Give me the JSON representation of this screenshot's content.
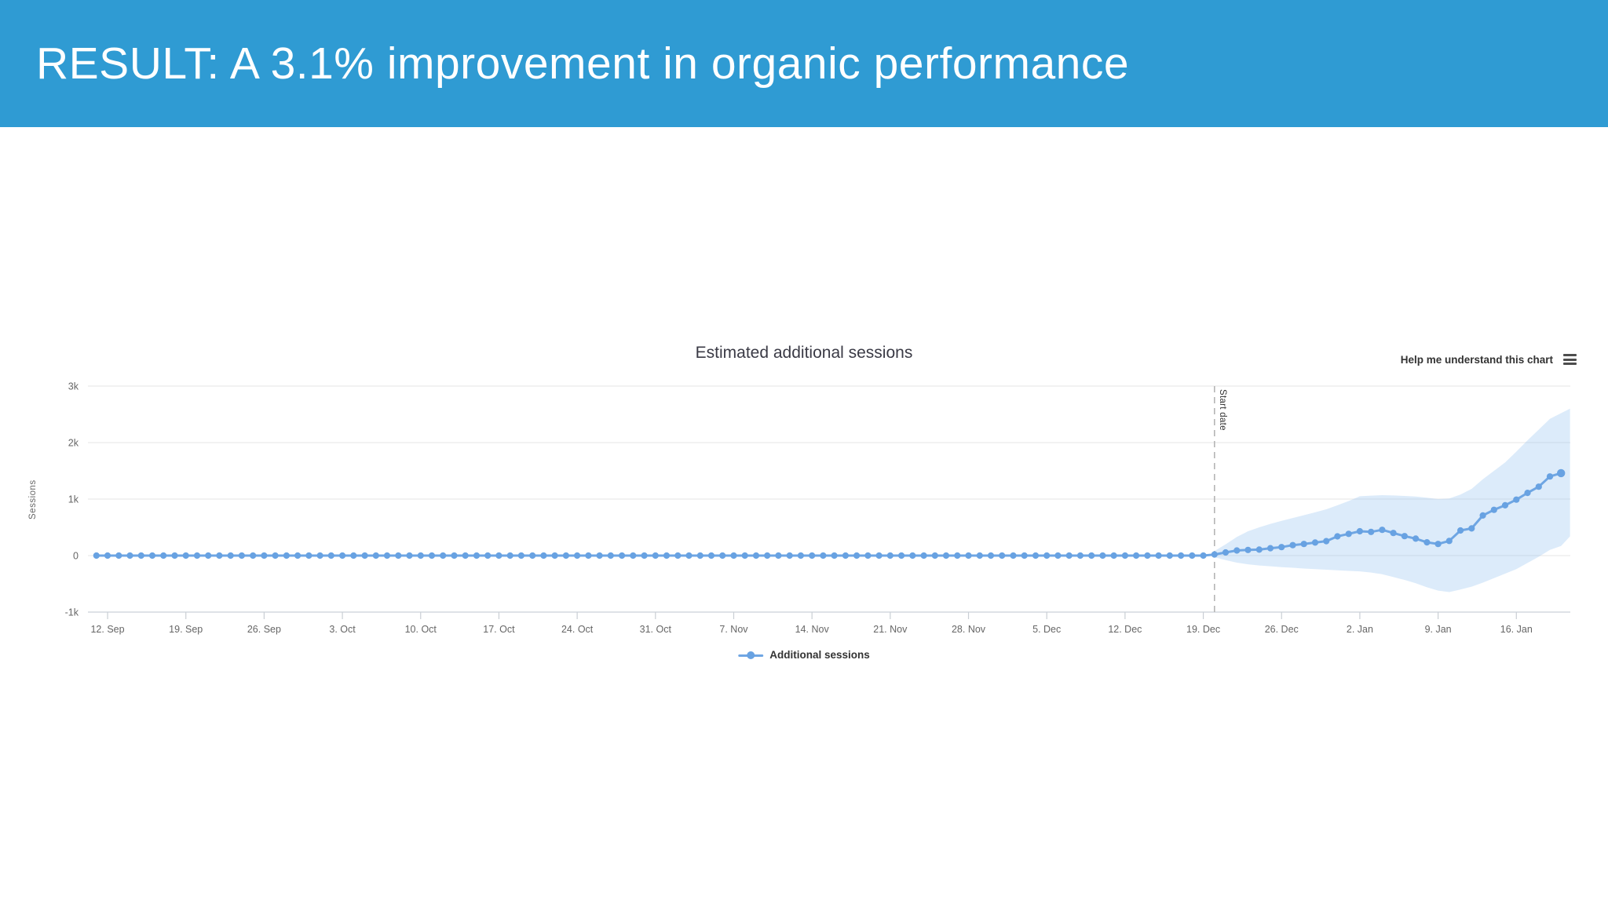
{
  "header": {
    "title": "RESULT: A 3.1% improvement in organic performance",
    "bg_color": "#2f9bd3",
    "text_color": "#ffffff"
  },
  "chart": {
    "help_label": "Help me understand this chart",
    "menu_icon": "hamburger-icon"
  },
  "chart_data": {
    "type": "line",
    "title": "Estimated additional sessions",
    "xlabel": "",
    "ylabel": "Sessions",
    "ylim": [
      -1000,
      3000
    ],
    "grid": true,
    "legend_position": "bottom-center",
    "yticks": [
      {
        "value": 3000,
        "label": "3k"
      },
      {
        "value": 2000,
        "label": "2k"
      },
      {
        "value": 1000,
        "label": "1k"
      },
      {
        "value": 0,
        "label": "0"
      },
      {
        "value": -1000,
        "label": "-1k"
      }
    ],
    "xticks": [
      {
        "day": 1,
        "label": "12. Sep"
      },
      {
        "day": 8,
        "label": "19. Sep"
      },
      {
        "day": 15,
        "label": "26. Sep"
      },
      {
        "day": 22,
        "label": "3. Oct"
      },
      {
        "day": 29,
        "label": "10. Oct"
      },
      {
        "day": 36,
        "label": "17. Oct"
      },
      {
        "day": 43,
        "label": "24. Oct"
      },
      {
        "day": 50,
        "label": "31. Oct"
      },
      {
        "day": 57,
        "label": "7. Nov"
      },
      {
        "day": 64,
        "label": "14. Nov"
      },
      {
        "day": 71,
        "label": "21. Nov"
      },
      {
        "day": 78,
        "label": "28. Nov"
      },
      {
        "day": 85,
        "label": "5. Dec"
      },
      {
        "day": 92,
        "label": "12. Dec"
      },
      {
        "day": 99,
        "label": "19. Dec"
      },
      {
        "day": 106,
        "label": "26. Dec"
      },
      {
        "day": 113,
        "label": "2. Jan"
      },
      {
        "day": 120,
        "label": "9. Jan"
      },
      {
        "day": 127,
        "label": "16. Jan"
      }
    ],
    "annotations": {
      "start_date": {
        "day": 100,
        "label": "Start date"
      }
    },
    "series": [
      {
        "name": "Additional sessions",
        "pre": {
          "from_day": 0,
          "to_day": 99,
          "value": 0
        },
        "post": {
          "start_day": 100,
          "values": [
            20,
            55,
            90,
            100,
            105,
            130,
            150,
            185,
            205,
            230,
            255,
            340,
            385,
            430,
            420,
            455,
            400,
            345,
            300,
            235,
            205,
            260,
            445,
            480,
            710,
            810,
            890,
            990,
            1110,
            1220,
            1400,
            1460
          ],
          "upper": [
            80,
            200,
            330,
            430,
            500,
            560,
            615,
            665,
            715,
            765,
            820,
            890,
            965,
            1050,
            1060,
            1070,
            1065,
            1055,
            1045,
            1025,
            1000,
            1010,
            1080,
            1180,
            1350,
            1500,
            1650,
            1840,
            2040,
            2230,
            2420,
            2520
          ],
          "lower": [
            -30,
            -80,
            -125,
            -155,
            -175,
            -190,
            -205,
            -215,
            -230,
            -240,
            -250,
            -260,
            -270,
            -280,
            -300,
            -330,
            -380,
            -430,
            -490,
            -560,
            -620,
            -645,
            -600,
            -550,
            -480,
            -400,
            -320,
            -240,
            -130,
            -20,
            100,
            170
          ]
        },
        "band_end": {
          "day": 131.8,
          "upper": 2600,
          "lower": 340
        }
      }
    ],
    "colors": {
      "line": "#6fa6e3",
      "marker": "#68a2e2",
      "band": "#7cb5ec",
      "grid": "#e6e6e6",
      "axis_line": "#d4d9df",
      "tick": "#c9ced4",
      "label": "#666666",
      "title": "#3a3a45",
      "text_dark": "#333333",
      "annotation_line": "#b5b5b5"
    }
  }
}
